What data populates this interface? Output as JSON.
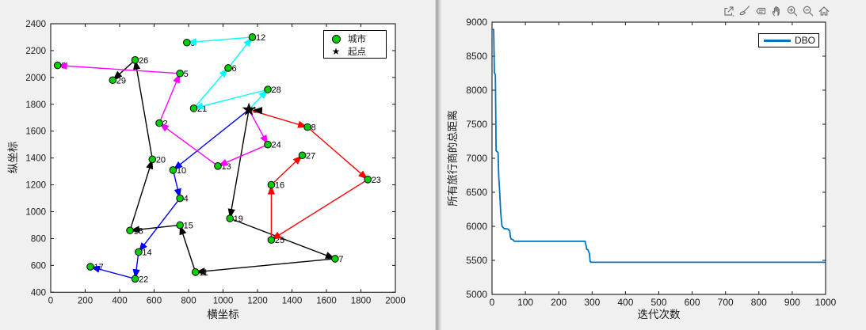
{
  "window": {
    "background": "#f0f0f0"
  },
  "chart_data": [
    {
      "type": "scatter",
      "title": "",
      "xlabel": "横坐标",
      "ylabel": "纵坐标",
      "xlim": [
        0,
        2000
      ],
      "ylim": [
        400,
        2400
      ],
      "xtick_step": 200,
      "ytick_step": 200,
      "grid": false,
      "legend_position": "top-right",
      "legend": [
        {
          "marker": "circle",
          "color": "#00CF00",
          "label": "城市"
        },
        {
          "marker": "star",
          "color": "#000000",
          "label": "起点"
        }
      ],
      "marker": {
        "fill": "#00CF00",
        "edge": "#000000"
      },
      "depot_id": 1,
      "cities": [
        {
          "id": 1,
          "x": 1150,
          "y": 1760
        },
        {
          "id": 2,
          "x": 630,
          "y": 1660
        },
        {
          "id": 3,
          "x": 40,
          "y": 2090
        },
        {
          "id": 4,
          "x": 750,
          "y": 1100
        },
        {
          "id": 5,
          "x": 750,
          "y": 2030
        },
        {
          "id": 6,
          "x": 1030,
          "y": 2070
        },
        {
          "id": 7,
          "x": 1650,
          "y": 650
        },
        {
          "id": 8,
          "x": 1490,
          "y": 1630
        },
        {
          "id": 9,
          "x": 790,
          "y": 2260
        },
        {
          "id": 10,
          "x": 710,
          "y": 1310
        },
        {
          "id": 11,
          "x": 840,
          "y": 550
        },
        {
          "id": 12,
          "x": 1170,
          "y": 2300
        },
        {
          "id": 13,
          "x": 970,
          "y": 1340
        },
        {
          "id": 14,
          "x": 510,
          "y": 700
        },
        {
          "id": 15,
          "x": 750,
          "y": 900
        },
        {
          "id": 16,
          "x": 1280,
          "y": 1200
        },
        {
          "id": 17,
          "x": 230,
          "y": 590
        },
        {
          "id": 18,
          "x": 460,
          "y": 860
        },
        {
          "id": 19,
          "x": 1040,
          "y": 950
        },
        {
          "id": 20,
          "x": 590,
          "y": 1390
        },
        {
          "id": 21,
          "x": 830,
          "y": 1770
        },
        {
          "id": 22,
          "x": 490,
          "y": 500
        },
        {
          "id": 23,
          "x": 1840,
          "y": 1240
        },
        {
          "id": 24,
          "x": 1260,
          "y": 1500
        },
        {
          "id": 25,
          "x": 1280,
          "y": 790
        },
        {
          "id": 26,
          "x": 490,
          "y": 2130
        },
        {
          "id": 27,
          "x": 1460,
          "y": 1420
        },
        {
          "id": 28,
          "x": 1260,
          "y": 1910
        },
        {
          "id": 29,
          "x": 360,
          "y": 1980
        }
      ],
      "routes": [
        {
          "color": "#000000",
          "path": [
            1,
            19,
            7,
            11,
            15,
            18,
            20,
            26,
            29
          ]
        },
        {
          "color": "#FF0000",
          "path": [
            1,
            8,
            23,
            25,
            16,
            27
          ]
        },
        {
          "color": "#0000FF",
          "path": [
            1,
            10,
            4,
            14,
            22,
            17
          ]
        },
        {
          "color": "#FF00FF",
          "path": [
            1,
            24,
            13,
            2,
            5,
            3
          ]
        },
        {
          "color": "#00FFFF",
          "path": [
            1,
            28,
            21,
            6,
            12,
            9
          ]
        }
      ],
      "depot_return_arrow": {
        "color": "#000000",
        "from": [
          1335,
          1745
        ],
        "to": [
          1172,
          1757
        ]
      }
    },
    {
      "type": "line",
      "title": "",
      "xlabel": "迭代次数",
      "ylabel": "所有旅行商的总距离",
      "xlim": [
        0,
        1000
      ],
      "ylim": [
        5000,
        9000
      ],
      "xtick_step": 100,
      "ytick_step": 500,
      "grid": false,
      "legend_position": "top-right",
      "legend": [
        {
          "marker": "line",
          "color": "#0072BD",
          "label": "DBO"
        }
      ],
      "series": [
        {
          "name": "DBO",
          "color": "#0072BD",
          "points": [
            [
              2,
              8895
            ],
            [
              5,
              8890
            ],
            [
              6,
              8600
            ],
            [
              7,
              8255
            ],
            [
              9,
              8240
            ],
            [
              10,
              8230
            ],
            [
              11,
              7800
            ],
            [
              12,
              7110
            ],
            [
              16,
              7095
            ],
            [
              18,
              7085
            ],
            [
              20,
              6750
            ],
            [
              23,
              6500
            ],
            [
              26,
              6210
            ],
            [
              30,
              6000
            ],
            [
              33,
              5985
            ],
            [
              36,
              5968
            ],
            [
              47,
              5960
            ],
            [
              50,
              5945
            ],
            [
              53,
              5940
            ],
            [
              55,
              5845
            ],
            [
              57,
              5815
            ],
            [
              64,
              5800
            ],
            [
              67,
              5780
            ],
            [
              279,
              5780
            ],
            [
              282,
              5718
            ],
            [
              284,
              5662
            ],
            [
              288,
              5655
            ],
            [
              290,
              5622
            ],
            [
              292,
              5600
            ],
            [
              294,
              5485
            ],
            [
              297,
              5472
            ],
            [
              1000,
              5472
            ]
          ]
        }
      ],
      "toolbar": [
        "export",
        "brush",
        "datatip",
        "pan",
        "zoom-in",
        "zoom-out",
        "home"
      ]
    }
  ]
}
